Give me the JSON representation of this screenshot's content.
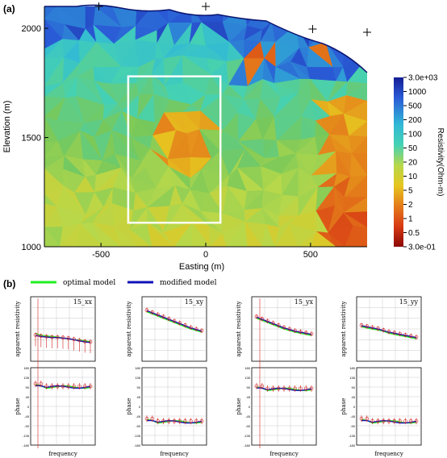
{
  "panel_a": {
    "label": "(a)",
    "xlabel": "Easting (m)",
    "ylabel": "Elevation (m)",
    "x_ticks": [
      -500,
      0,
      500
    ],
    "y_ticks": [
      1000,
      1500,
      2000
    ],
    "xlim": [
      -770,
      770
    ],
    "ylim": [
      1000,
      2100
    ],
    "colorbar_label": "Resistivity(Ohm-m)",
    "colorbar_ticks": [
      "3.0e+03",
      "1000",
      "500",
      "200",
      "100",
      "50",
      "20",
      "10",
      "5",
      "2",
      "1",
      "0.5",
      "3.0e-01"
    ],
    "surface_stations_x": [
      -510,
      0,
      510
    ],
    "colors": {
      "high": "#1a2ca0",
      "mid": "#2cc4c8",
      "low": "#9c0a06",
      "box": "#ffffff"
    }
  },
  "panel_b": {
    "label": "(b)",
    "legend": [
      {
        "label": "optimal model",
        "color": "#22ee22"
      },
      {
        "label": "modified model",
        "color": "#1010b8"
      }
    ],
    "xlabel": "frequency",
    "ylabel_top": "apparent resistivity",
    "ylabel_bottom": "phase",
    "phase_ticks": [
      "180",
      "135",
      "90",
      "45",
      "0",
      "-45",
      "-90",
      "-135",
      "-180"
    ],
    "subplots": [
      {
        "title": "15_xx"
      },
      {
        "title": "15_xy"
      },
      {
        "title": "15_yx"
      },
      {
        "title": "15_yy"
      }
    ]
  },
  "chart_data": [
    {
      "type": "heatmap",
      "title": "",
      "xlabel": "Easting (m)",
      "ylabel": "Elevation (m)",
      "xlim": [
        -770,
        770
      ],
      "ylim": [
        1000,
        2100
      ],
      "colorbar": {
        "label": "Resistivity(Ohm-m)",
        "scale": "log",
        "range": [
          0.3,
          3000
        ]
      },
      "annotation_box": {
        "x": [
          -370,
          70
        ],
        "y": [
          1110,
          1780
        ]
      }
    },
    {
      "type": "scatter",
      "title": "15_xx",
      "xlabel": "frequency",
      "ylabel": "apparent resistivity",
      "series": [
        {
          "name": "optimal model",
          "values": [
            1.6,
            1.4,
            1.35,
            1.3,
            1.25,
            1.15,
            1.1,
            1.0,
            0.95,
            0.9,
            0.8
          ]
        },
        {
          "name": "modified model",
          "values": [
            1.4,
            1.3,
            1.25,
            1.2,
            1.2,
            1.15,
            1.1,
            1.0,
            0.9,
            0.8,
            0.75
          ]
        }
      ]
    },
    {
      "type": "scatter",
      "title": "15_xy",
      "xlabel": "frequency",
      "ylabel": "apparent resistivity",
      "series": [
        {
          "name": "optimal model",
          "values": [
            3.6,
            3.4,
            3.2,
            3.0,
            2.8,
            2.6,
            2.4,
            2.2,
            2.0,
            1.85,
            1.7
          ]
        },
        {
          "name": "modified model",
          "values": [
            3.7,
            3.5,
            3.3,
            3.1,
            2.9,
            2.7,
            2.5,
            2.3,
            2.1,
            1.95,
            1.8
          ]
        }
      ]
    },
    {
      "type": "scatter",
      "title": "15_yx",
      "xlabel": "frequency",
      "ylabel": "apparent resistivity",
      "series": [
        {
          "name": "optimal model",
          "values": [
            3.0,
            2.8,
            2.6,
            2.4,
            2.2,
            2.0,
            1.85,
            1.7,
            1.6,
            1.5,
            1.4
          ]
        },
        {
          "name": "modified model",
          "values": [
            3.1,
            2.9,
            2.7,
            2.5,
            2.3,
            2.1,
            1.95,
            1.8,
            1.7,
            1.6,
            1.5
          ]
        }
      ]
    },
    {
      "type": "scatter",
      "title": "15_yy",
      "xlabel": "frequency",
      "ylabel": "apparent resistivity",
      "series": [
        {
          "name": "optimal model",
          "values": [
            2.2,
            2.1,
            2.0,
            1.9,
            1.8,
            1.6,
            1.5,
            1.4,
            1.3,
            1.2,
            1.1
          ]
        },
        {
          "name": "modified model",
          "values": [
            2.3,
            2.2,
            2.1,
            2.0,
            1.85,
            1.7,
            1.6,
            1.5,
            1.4,
            1.3,
            1.2
          ]
        }
      ]
    }
  ]
}
